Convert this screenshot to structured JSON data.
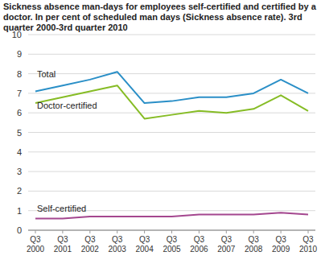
{
  "chart_data": {
    "type": "line",
    "title": "Sickness absence man-days for employees self-certified and certified by a doctor. In per cent of scheduled man days (Sickness absence rate). 3rd quarter 2000-3rd quarter 2010",
    "categories": [
      "Q3 2000",
      "Q3 2001",
      "Q3 2002",
      "Q3 2003",
      "Q3 2004",
      "Q3 2005",
      "Q3 2006",
      "Q3 2007",
      "Q3 2008",
      "Q3 2009",
      "Q3 2010"
    ],
    "series": [
      {
        "name": "Total",
        "color": "#2a8fc7",
        "values": [
          7.1,
          7.4,
          7.7,
          8.1,
          6.5,
          6.6,
          6.8,
          6.8,
          7.0,
          7.7,
          7.0
        ]
      },
      {
        "name": "Doctor-certified",
        "color": "#86bc25",
        "values": [
          6.5,
          6.8,
          7.1,
          7.4,
          5.7,
          5.9,
          6.1,
          6.0,
          6.2,
          6.9,
          6.1
        ]
      },
      {
        "name": "Self-certified",
        "color": "#a4478f",
        "values": [
          0.6,
          0.6,
          0.7,
          0.7,
          0.7,
          0.7,
          0.8,
          0.8,
          0.8,
          0.9,
          0.8
        ]
      }
    ],
    "ylim": [
      0,
      10
    ],
    "yticks": [
      0,
      1,
      2,
      3,
      4,
      5,
      6,
      7,
      8,
      9,
      10
    ],
    "grid": true
  }
}
